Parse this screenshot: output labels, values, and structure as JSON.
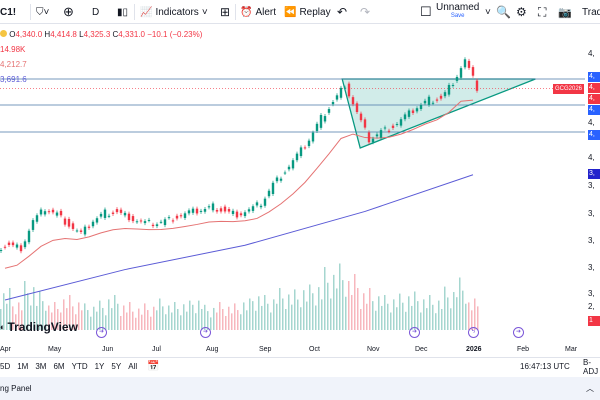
{
  "toolbar": {
    "symbol": "C1!",
    "interval": "D",
    "indicators": "Indicators",
    "alert": "Alert",
    "replay": "Replay",
    "layout_name": "Unnamed",
    "layout_status": "Save",
    "trade": "Trade"
  },
  "legend": {
    "open_label": "O",
    "open": "4,340.0",
    "high_label": "H",
    "high": "4,414.8",
    "low_label": "L",
    "low": "4,325.3",
    "close_label": "C",
    "close": "4,331.0",
    "change": "−10.1 (−0.23%)",
    "volume": "14.98K",
    "ma1": "4,212.7",
    "ma2": "3,691.6"
  },
  "colors": {
    "up": "#089981",
    "down": "#f23645",
    "ma_fast": "#e57373",
    "ma_slow": "#5b5bd6",
    "hline": "#2962ff",
    "triangle_fill": "#b2dfdb",
    "triangle_line": "#089981"
  },
  "price_axis": {
    "labels": [
      "4,",
      "4,",
      "4,",
      "3,",
      "3,",
      "3,",
      "3,",
      "3,",
      "2,"
    ],
    "tags": [
      {
        "text": "4,",
        "color": "#2962ff"
      },
      {
        "text": "4,",
        "color": "#f23645"
      },
      {
        "text": "4,",
        "color": "#f23645"
      },
      {
        "text": "4,",
        "color": "#2962ff"
      },
      {
        "text": "4,",
        "color": "#2962ff"
      },
      {
        "text": "3,",
        "color": "#2222cc"
      },
      {
        "text": "1",
        "color": "#f23645"
      }
    ],
    "symbol_tag": "GCG2026"
  },
  "time_axis": [
    "Apr",
    "May",
    "Jun",
    "Jul",
    "Aug",
    "Sep",
    "Oct",
    "Nov",
    "Dec",
    "2026",
    "Feb",
    "Mar"
  ],
  "bottom": {
    "ranges": [
      "5D",
      "1M",
      "3M",
      "6M",
      "YTD",
      "1Y",
      "5Y",
      "All"
    ],
    "clock": "16:47:13 UTC",
    "extra": "B-ADJ"
  },
  "panel": {
    "label": "ng Panel"
  },
  "logo": "TradingView",
  "chart_data": {
    "type": "candlestick",
    "closes": [
      3172,
      3150,
      3350,
      3440,
      3400,
      3320,
      3250,
      3350,
      3410,
      3415,
      3380,
      3340,
      3330,
      3350,
      3380,
      3410,
      3430,
      3455,
      3420,
      3400,
      3430,
      3480,
      3620,
      3720,
      3830,
      3950,
      4110,
      4230,
      4360,
      4150,
      3950,
      4010,
      4050,
      4120,
      4190,
      4245,
      4255,
      4380,
      4540,
      4331
    ],
    "volumes": [
      60,
      45,
      70,
      55,
      40,
      50,
      45,
      38,
      42,
      50,
      40,
      35,
      38,
      45,
      40,
      42,
      48,
      36,
      40,
      38,
      45,
      55,
      50,
      60,
      58,
      65,
      70,
      90,
      95,
      80,
      60,
      55,
      50,
      52,
      55,
      50,
      48,
      62,
      75,
      45
    ],
    "ma_slow": [
      [
        0,
        2765
      ],
      [
        10,
        2990
      ],
      [
        20,
        3170
      ],
      [
        30,
        3420
      ],
      [
        39,
        3691.6
      ]
    ],
    "hlines": [
      4400,
      4208,
      4008
    ],
    "last": 4331,
    "triangle": [
      [
        28.1,
        4400
      ],
      [
        44.2,
        4400
      ],
      [
        29.6,
        3890
      ]
    ]
  }
}
